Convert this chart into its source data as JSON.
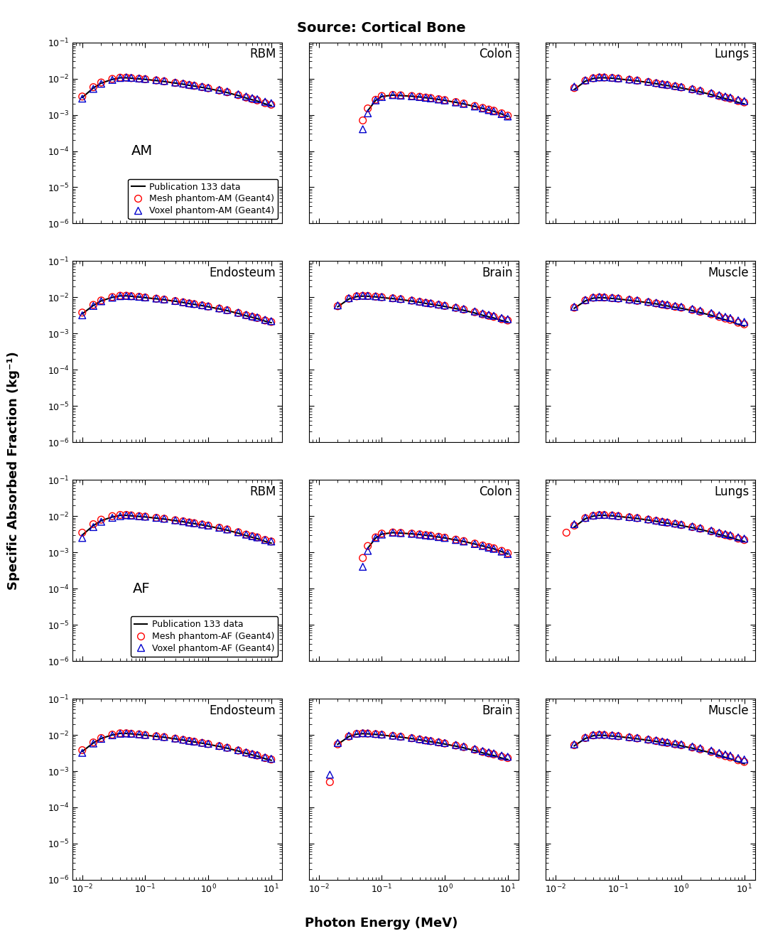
{
  "title": "Source: Cortical Bone",
  "xlabel": "Photon Energy (MeV)",
  "ylabel": "Specific Absorbed Fraction (kg⁻¹)",
  "energy_pub": [
    0.01,
    0.015,
    0.02,
    0.03,
    0.04,
    0.05,
    0.06,
    0.08,
    0.1,
    0.15,
    0.2,
    0.3,
    0.4,
    0.5,
    0.6,
    0.8,
    1.0,
    1.5,
    2.0,
    3.0,
    4.0,
    5.0,
    6.0,
    8.0,
    10.0
  ],
  "ylim": [
    1e-06,
    0.1
  ],
  "xlim": [
    0.007,
    15.0
  ],
  "line_color": "#000000",
  "mesh_color": "#ff0000",
  "voxel_color": "#0000cc",
  "mesh_marker": "o",
  "voxel_marker": "^",
  "marker_size": 7,
  "line_width": 1.5,
  "subplot_title_fontsize": 12,
  "axis_label_fontsize": 13,
  "title_fontsize": 14,
  "legend_fontsize": 9,
  "row_label_fontsize": 14,
  "tick_fontsize": 9,
  "data": {
    "AM": {
      "RBM": {
        "pub": [
          0.003,
          0.0055,
          0.0075,
          0.0095,
          0.0105,
          0.0105,
          0.0102,
          0.0098,
          0.0095,
          0.0088,
          0.0083,
          0.0075,
          0.007,
          0.0065,
          0.0062,
          0.0057,
          0.0053,
          0.0046,
          0.0041,
          0.0034,
          0.0029,
          0.0026,
          0.0024,
          0.002,
          0.0018
        ],
        "mesh": [
          0.0032,
          0.0058,
          0.0078,
          0.0098,
          0.0106,
          0.0106,
          0.0103,
          0.0099,
          0.0096,
          0.0089,
          0.0084,
          0.0076,
          0.0071,
          0.0066,
          0.0063,
          0.0058,
          0.0054,
          0.0047,
          0.0042,
          0.0035,
          0.003,
          0.0027,
          0.0025,
          0.0021,
          0.0019
        ],
        "voxel": [
          0.0028,
          0.0052,
          0.0072,
          0.0092,
          0.0104,
          0.0108,
          0.0105,
          0.0101,
          0.0098,
          0.0091,
          0.0086,
          0.0078,
          0.0073,
          0.0068,
          0.0065,
          0.006,
          0.0056,
          0.0049,
          0.0044,
          0.0037,
          0.0032,
          0.0029,
          0.0027,
          0.0023,
          0.0021
        ]
      },
      "Colon": {
        "pub": [
          null,
          null,
          null,
          null,
          null,
          null,
          0.0013,
          0.0025,
          0.0032,
          0.0035,
          0.0034,
          0.00325,
          0.0031,
          0.00295,
          0.00285,
          0.00265,
          0.0025,
          0.0022,
          0.002,
          0.0017,
          0.0015,
          0.00135,
          0.00125,
          0.00105,
          0.0009
        ],
        "mesh": [
          null,
          null,
          null,
          null,
          null,
          0.0007,
          0.0015,
          0.0026,
          0.0033,
          0.00355,
          0.00345,
          0.0033,
          0.00315,
          0.003,
          0.0029,
          0.0027,
          0.00255,
          0.00225,
          0.00205,
          0.00175,
          0.00155,
          0.0014,
          0.0013,
          0.0011,
          0.00095
        ],
        "voxel": [
          null,
          null,
          null,
          null,
          null,
          0.0004,
          0.0011,
          0.0025,
          0.0031,
          0.0035,
          0.0034,
          0.00325,
          0.0031,
          0.00295,
          0.00285,
          0.00265,
          0.0025,
          0.0022,
          0.002,
          0.0017,
          0.0015,
          0.00135,
          0.00125,
          0.00105,
          0.0009
        ]
      },
      "Lungs": {
        "pub": [
          null,
          null,
          0.005,
          0.0085,
          0.01,
          0.0105,
          0.0105,
          0.0102,
          0.0098,
          0.0091,
          0.0086,
          0.0078,
          0.0072,
          0.0067,
          0.0064,
          0.0059,
          0.0055,
          0.0048,
          0.0043,
          0.0036,
          0.0031,
          0.0028,
          0.0026,
          0.0022,
          0.002
        ],
        "mesh": [
          null,
          null,
          0.0055,
          0.0087,
          0.0102,
          0.0107,
          0.0107,
          0.0104,
          0.01,
          0.0093,
          0.0088,
          0.008,
          0.0074,
          0.0069,
          0.0066,
          0.0061,
          0.0057,
          0.005,
          0.0045,
          0.0038,
          0.0033,
          0.003,
          0.0028,
          0.0024,
          0.0022
        ],
        "voxel": [
          null,
          null,
          0.006,
          0.009,
          0.0104,
          0.0109,
          0.0109,
          0.0106,
          0.0102,
          0.0095,
          0.009,
          0.0082,
          0.0076,
          0.0071,
          0.0068,
          0.0063,
          0.0059,
          0.0052,
          0.0047,
          0.004,
          0.0035,
          0.0032,
          0.003,
          0.0026,
          0.0024
        ]
      },
      "Endosteum": {
        "pub": [
          0.0035,
          0.006,
          0.008,
          0.01,
          0.011,
          0.011,
          0.0107,
          0.0102,
          0.0098,
          0.0091,
          0.0086,
          0.0078,
          0.0072,
          0.0067,
          0.0064,
          0.0059,
          0.0055,
          0.0048,
          0.0043,
          0.0036,
          0.0031,
          0.0028,
          0.0026,
          0.0022,
          0.002
        ],
        "mesh": [
          0.0038,
          0.0062,
          0.0082,
          0.0102,
          0.0111,
          0.0111,
          0.0108,
          0.0104,
          0.0099,
          0.0092,
          0.0087,
          0.0079,
          0.0073,
          0.0068,
          0.0065,
          0.006,
          0.0056,
          0.0049,
          0.0044,
          0.0037,
          0.0032,
          0.0029,
          0.0027,
          0.0023,
          0.0021
        ],
        "voxel": [
          0.0032,
          0.0058,
          0.0078,
          0.0098,
          0.0108,
          0.011,
          0.0108,
          0.0104,
          0.01,
          0.0093,
          0.0088,
          0.008,
          0.0074,
          0.0069,
          0.0066,
          0.0061,
          0.0057,
          0.005,
          0.0045,
          0.0038,
          0.0033,
          0.003,
          0.0028,
          0.0024,
          0.0022
        ]
      },
      "Brain": {
        "pub": [
          null,
          null,
          0.0055,
          0.009,
          0.0105,
          0.0108,
          0.0107,
          0.0103,
          0.0099,
          0.0092,
          0.0087,
          0.0079,
          0.0073,
          0.0068,
          0.0065,
          0.006,
          0.0056,
          0.0049,
          0.0044,
          0.0037,
          0.0032,
          0.0029,
          0.0027,
          0.0023,
          0.0021
        ],
        "mesh": [
          null,
          null,
          0.0057,
          0.0092,
          0.0107,
          0.011,
          0.0109,
          0.0105,
          0.0101,
          0.0094,
          0.0089,
          0.0081,
          0.0075,
          0.007,
          0.0067,
          0.0062,
          0.0058,
          0.0051,
          0.0046,
          0.0039,
          0.0034,
          0.0031,
          0.0029,
          0.0025,
          0.0023
        ],
        "voxel": [
          null,
          null,
          0.006,
          0.0095,
          0.0109,
          0.0112,
          0.0111,
          0.0107,
          0.0103,
          0.0096,
          0.0091,
          0.0083,
          0.0077,
          0.0072,
          0.0069,
          0.0064,
          0.006,
          0.0053,
          0.0048,
          0.0041,
          0.0036,
          0.0033,
          0.0031,
          0.0027,
          0.0025
        ]
      },
      "Muscle": {
        "pub": [
          null,
          null,
          0.005,
          0.008,
          0.0095,
          0.0098,
          0.0097,
          0.0093,
          0.009,
          0.0083,
          0.0078,
          0.0071,
          0.0066,
          0.0061,
          0.0058,
          0.0053,
          0.005,
          0.0043,
          0.0038,
          0.0032,
          0.0027,
          0.0024,
          0.0022,
          0.0018,
          0.0016
        ],
        "mesh": [
          null,
          null,
          0.0052,
          0.0082,
          0.0097,
          0.01,
          0.0099,
          0.0095,
          0.0092,
          0.0085,
          0.008,
          0.0073,
          0.0068,
          0.0063,
          0.006,
          0.0055,
          0.0052,
          0.0045,
          0.004,
          0.0034,
          0.0029,
          0.0026,
          0.0024,
          0.002,
          0.0018
        ],
        "voxel": [
          null,
          null,
          0.0055,
          0.0085,
          0.01,
          0.0103,
          0.0102,
          0.0098,
          0.0095,
          0.0088,
          0.0083,
          0.0076,
          0.0071,
          0.0066,
          0.0063,
          0.0058,
          0.0055,
          0.0048,
          0.0043,
          0.0037,
          0.0032,
          0.0029,
          0.0027,
          0.0023,
          0.0021
        ]
      }
    },
    "AF": {
      "RBM": {
        "pub": [
          0.003,
          0.0055,
          0.0075,
          0.0095,
          0.0105,
          0.0105,
          0.0102,
          0.0098,
          0.0095,
          0.0088,
          0.0083,
          0.0075,
          0.007,
          0.0065,
          0.0062,
          0.0057,
          0.0053,
          0.0046,
          0.0041,
          0.0034,
          0.0029,
          0.0026,
          0.0024,
          0.002,
          0.0018
        ],
        "mesh": [
          0.0035,
          0.006,
          0.008,
          0.01,
          0.0108,
          0.0108,
          0.0105,
          0.01,
          0.0097,
          0.009,
          0.0085,
          0.0077,
          0.0072,
          0.0067,
          0.0064,
          0.0059,
          0.0055,
          0.0048,
          0.0043,
          0.0036,
          0.0031,
          0.0028,
          0.0026,
          0.0022,
          0.002
        ],
        "voxel": [
          0.0025,
          0.005,
          0.007,
          0.009,
          0.01,
          0.0106,
          0.0104,
          0.01,
          0.0097,
          0.009,
          0.0085,
          0.0077,
          0.0072,
          0.0067,
          0.0064,
          0.0059,
          0.0055,
          0.0048,
          0.0043,
          0.0036,
          0.0031,
          0.0028,
          0.0026,
          0.0022,
          0.002
        ]
      },
      "Colon": {
        "pub": [
          null,
          null,
          null,
          null,
          null,
          null,
          0.0013,
          0.0025,
          0.0032,
          0.0035,
          0.0034,
          0.00325,
          0.0031,
          0.00295,
          0.00285,
          0.00265,
          0.0025,
          0.0022,
          0.002,
          0.0017,
          0.0015,
          0.00135,
          0.00125,
          0.00105,
          0.0009
        ],
        "mesh": [
          null,
          null,
          null,
          null,
          null,
          0.0007,
          0.0015,
          0.0026,
          0.0033,
          0.00355,
          0.00345,
          0.0033,
          0.00315,
          0.003,
          0.0029,
          0.0027,
          0.00255,
          0.00225,
          0.00205,
          0.00175,
          0.00155,
          0.0014,
          0.0013,
          0.0011,
          0.00095
        ],
        "voxel": [
          null,
          null,
          null,
          null,
          null,
          0.0004,
          0.0011,
          0.0025,
          0.0031,
          0.0035,
          0.0034,
          0.00325,
          0.0031,
          0.00295,
          0.00285,
          0.00265,
          0.0025,
          0.0022,
          0.002,
          0.0017,
          0.0015,
          0.00135,
          0.00125,
          0.00105,
          0.0009
        ]
      },
      "Lungs": {
        "pub": [
          null,
          null,
          0.005,
          0.0085,
          0.01,
          0.0105,
          0.0105,
          0.0102,
          0.0098,
          0.0091,
          0.0086,
          0.0078,
          0.0072,
          0.0067,
          0.0064,
          0.0059,
          0.0055,
          0.0048,
          0.0043,
          0.0036,
          0.0031,
          0.0028,
          0.0026,
          0.0022,
          0.002
        ],
        "mesh": [
          null,
          0.0035,
          0.0055,
          0.0088,
          0.0102,
          0.0107,
          0.0107,
          0.0104,
          0.01,
          0.0093,
          0.0088,
          0.008,
          0.0074,
          0.0069,
          0.0066,
          0.0061,
          0.0057,
          0.005,
          0.0045,
          0.0038,
          0.0033,
          0.003,
          0.0028,
          0.0024,
          0.0022
        ],
        "voxel": [
          null,
          null,
          0.006,
          0.009,
          0.0104,
          0.0109,
          0.0109,
          0.0106,
          0.0102,
          0.0095,
          0.009,
          0.0082,
          0.0076,
          0.0071,
          0.0068,
          0.0063,
          0.0059,
          0.0052,
          0.0047,
          0.004,
          0.0035,
          0.0032,
          0.003,
          0.0026,
          0.0024
        ]
      },
      "Endosteum": {
        "pub": [
          0.0035,
          0.006,
          0.008,
          0.01,
          0.011,
          0.011,
          0.0107,
          0.0102,
          0.0098,
          0.0091,
          0.0086,
          0.0078,
          0.0072,
          0.0067,
          0.0064,
          0.0059,
          0.0055,
          0.0048,
          0.0043,
          0.0036,
          0.0031,
          0.0028,
          0.0026,
          0.0022,
          0.002
        ],
        "mesh": [
          0.0038,
          0.0062,
          0.0082,
          0.0102,
          0.0111,
          0.0111,
          0.0108,
          0.0104,
          0.0099,
          0.0092,
          0.0087,
          0.0079,
          0.0073,
          0.0068,
          0.0065,
          0.006,
          0.0056,
          0.0049,
          0.0044,
          0.0037,
          0.0032,
          0.0029,
          0.0027,
          0.0023,
          0.0021
        ],
        "voxel": [
          0.0032,
          0.0058,
          0.0078,
          0.0098,
          0.0108,
          0.011,
          0.0108,
          0.0104,
          0.01,
          0.0093,
          0.0088,
          0.008,
          0.0074,
          0.0069,
          0.0066,
          0.0061,
          0.0057,
          0.005,
          0.0045,
          0.0038,
          0.0033,
          0.003,
          0.0028,
          0.0024,
          0.0022
        ]
      },
      "Brain": {
        "pub": [
          null,
          null,
          0.0055,
          0.009,
          0.0105,
          0.0108,
          0.0107,
          0.0103,
          0.0099,
          0.0092,
          0.0087,
          0.0079,
          0.0073,
          0.0068,
          0.0065,
          0.006,
          0.0056,
          0.0049,
          0.0044,
          0.0037,
          0.0032,
          0.0029,
          0.0027,
          0.0023,
          0.0021
        ],
        "mesh": [
          null,
          0.0005,
          0.0055,
          0.009,
          0.0107,
          0.011,
          0.0109,
          0.0105,
          0.0101,
          0.0094,
          0.0089,
          0.0081,
          0.0075,
          0.007,
          0.0067,
          0.0062,
          0.0058,
          0.0051,
          0.0046,
          0.0039,
          0.0034,
          0.0031,
          0.0029,
          0.0025,
          0.0023
        ],
        "voxel": [
          null,
          0.0008,
          0.006,
          0.0095,
          0.0109,
          0.0112,
          0.0111,
          0.0107,
          0.0103,
          0.0096,
          0.0091,
          0.0083,
          0.0077,
          0.0072,
          0.0069,
          0.0064,
          0.006,
          0.0053,
          0.0048,
          0.0041,
          0.0036,
          0.0033,
          0.0031,
          0.0027,
          0.0025
        ]
      },
      "Muscle": {
        "pub": [
          null,
          null,
          0.005,
          0.008,
          0.0095,
          0.0098,
          0.0097,
          0.0093,
          0.009,
          0.0083,
          0.0078,
          0.0071,
          0.0066,
          0.0061,
          0.0058,
          0.0053,
          0.005,
          0.0043,
          0.0038,
          0.0032,
          0.0027,
          0.0024,
          0.0022,
          0.0018,
          0.0016
        ],
        "mesh": [
          null,
          null,
          0.0052,
          0.0082,
          0.0097,
          0.01,
          0.0099,
          0.0095,
          0.0092,
          0.0085,
          0.008,
          0.0073,
          0.0068,
          0.0063,
          0.006,
          0.0055,
          0.0052,
          0.0045,
          0.004,
          0.0034,
          0.0029,
          0.0026,
          0.0024,
          0.002,
          0.0018
        ],
        "voxel": [
          null,
          null,
          0.0055,
          0.0085,
          0.01,
          0.0103,
          0.0102,
          0.0098,
          0.0095,
          0.0088,
          0.0083,
          0.0076,
          0.0071,
          0.0066,
          0.0063,
          0.0058,
          0.0055,
          0.0048,
          0.0043,
          0.0037,
          0.0032,
          0.0029,
          0.0027,
          0.0023,
          0.0021
        ]
      }
    }
  }
}
